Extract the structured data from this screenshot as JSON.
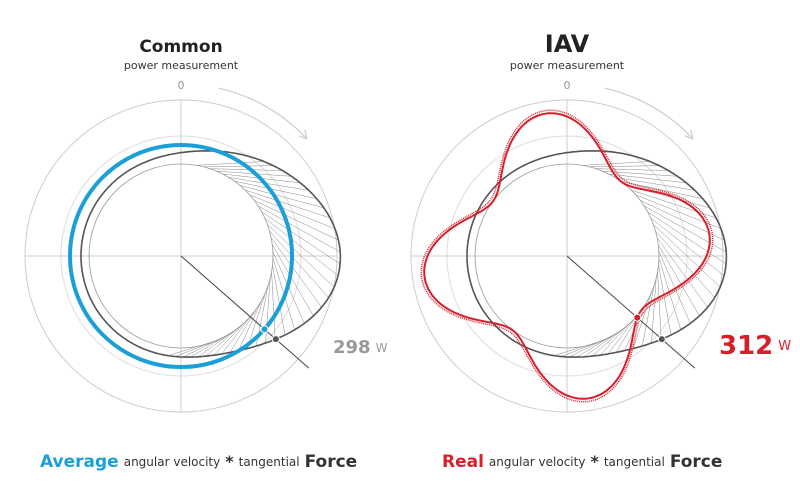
{
  "panels": [
    {
      "title": "Common",
      "subtitle": "power measurement",
      "zero_label": "0",
      "value": 298,
      "unit": "W",
      "caption": {
        "highlight": "Average",
        "part1": "angular velocity",
        "operator": "*",
        "part2": "tangential",
        "end": "Force"
      }
    },
    {
      "title": "IAV",
      "subtitle": "power measurement",
      "zero_label": "0",
      "value": 312,
      "unit": "W",
      "caption": {
        "highlight": "Real",
        "part1": "angular velocity",
        "operator": "*",
        "part2": "tangential",
        "end": "Force"
      }
    }
  ]
}
